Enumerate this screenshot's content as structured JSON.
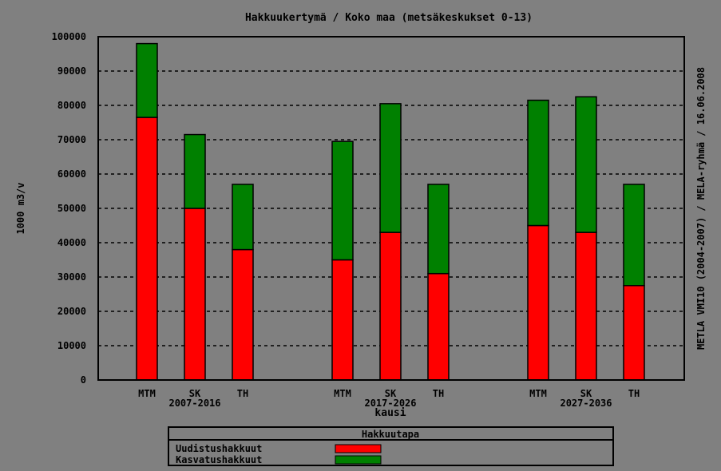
{
  "chart_data": {
    "type": "bar",
    "stacked": true,
    "title": "Hakkuukertymä / Koko maa (metsäkeskukset 0-13)",
    "ylabel": "1000 m3/v",
    "xlabel": "kausi",
    "right_label": "METLA VMI10 (2004-2007) / MELA-ryhmä / 16.06.2008",
    "ylim": [
      0,
      100000
    ],
    "yticks": [
      "0",
      "10000",
      "20000",
      "30000",
      "40000",
      "50000",
      "60000",
      "70000",
      "80000",
      "90000",
      "100000"
    ],
    "grid": true,
    "groups": [
      {
        "label": "2007-2016",
        "categories": [
          "MTM",
          "SK",
          "TH"
        ]
      },
      {
        "label": "2017-2026",
        "categories": [
          "MTM",
          "SK",
          "TH"
        ]
      },
      {
        "label": "2027-2036",
        "categories": [
          "MTM",
          "SK",
          "TH"
        ]
      }
    ],
    "series": [
      {
        "name": "Uudistushakkuut",
        "color": "#ff0000",
        "values": [
          76500,
          50000,
          38000,
          35000,
          43000,
          31000,
          45000,
          43000,
          27500
        ]
      },
      {
        "name": "Kasvatushakkuut",
        "color": "#008000",
        "values": [
          21500,
          21500,
          19000,
          34500,
          37500,
          26000,
          36500,
          39500,
          29500
        ]
      }
    ],
    "legend": {
      "title": "Hakkuutapa",
      "placement": "bottom"
    }
  }
}
